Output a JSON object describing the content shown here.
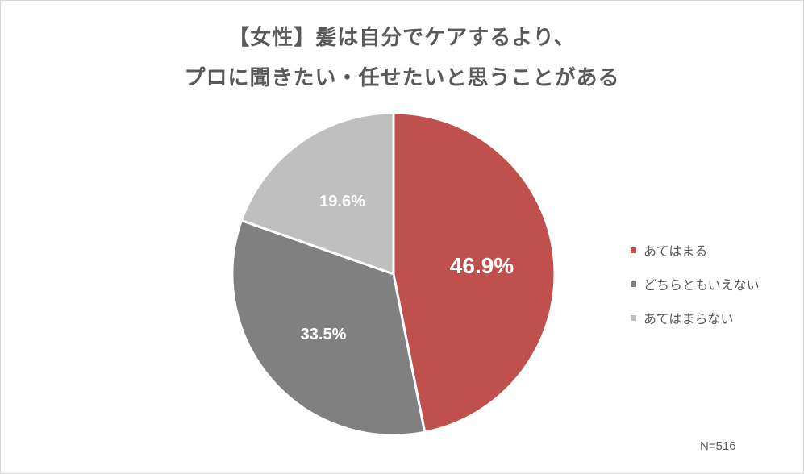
{
  "chart_data": {
    "type": "pie",
    "title_lines": [
      "【女性】髪は自分でケアするより、",
      "プロに聞きたい・任せたいと思うことがある"
    ],
    "slices": [
      {
        "label": "あてはまる",
        "value": 46.9,
        "display": "46.9%",
        "color": "#c0504d"
      },
      {
        "label": "どちらともいえない",
        "value": 33.5,
        "display": "33.5%",
        "color": "#808080"
      },
      {
        "label": "あてはまらない",
        "value": 19.6,
        "display": "19.6%",
        "color": "#bfbfbf"
      }
    ],
    "legend_position": "right",
    "note": "N=516"
  }
}
